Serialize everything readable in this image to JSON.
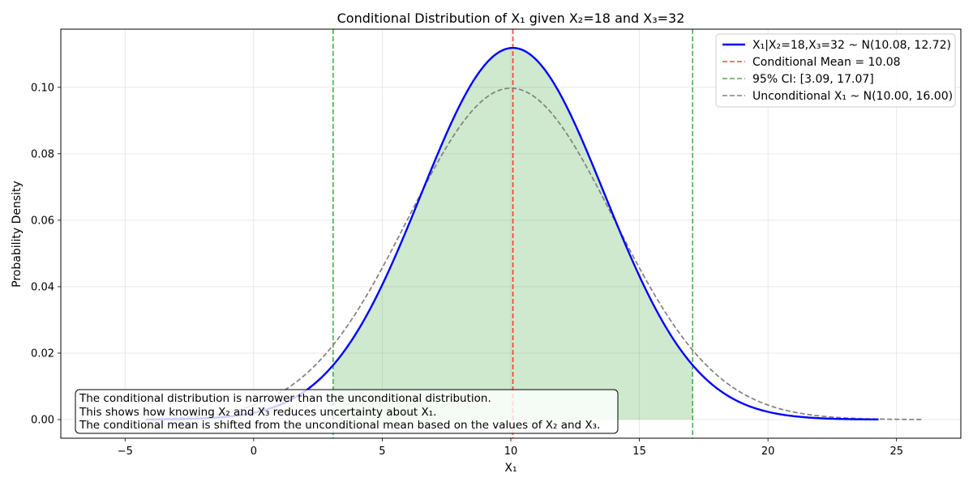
{
  "chart_data": {
    "type": "line",
    "title": "Conditional Distribution of X₁ given X₂=18 and X₃=32",
    "xlabel": "X₁",
    "ylabel": "Probability Density",
    "xlim": [
      -7.5,
      27.5
    ],
    "ylim": [
      -0.0056,
      0.1175
    ],
    "x_ticks": [
      -5,
      0,
      5,
      10,
      15,
      20,
      25
    ],
    "x_tick_labels": [
      "−5",
      "0",
      "5",
      "10",
      "15",
      "20",
      "25"
    ],
    "y_ticks": [
      0.0,
      0.02,
      0.04,
      0.06,
      0.08,
      0.1
    ],
    "y_tick_labels": [
      "0.00",
      "0.02",
      "0.04",
      "0.06",
      "0.08",
      "0.10"
    ],
    "grid": true,
    "legend_position": "top-right",
    "series": [
      {
        "name": "X₁|X₂=18,X₃=32 ~ N(10.08, 12.72)",
        "kind": "normal_pdf",
        "mean": 10.08,
        "variance": 12.72,
        "x_range": [
          -4.2,
          24.3
        ],
        "color": "#0000ff",
        "style": "solid"
      },
      {
        "name": "Conditional Mean = 10.08",
        "kind": "vline",
        "x": 10.08,
        "color": "#ff0000",
        "style": "dashed"
      },
      {
        "name": "95% CI: [3.09, 17.07]",
        "kind": "vlines",
        "x": [
          3.09,
          17.07
        ],
        "color": "#2ca02c",
        "style": "dashed"
      },
      {
        "name": "Unconditional X₁ ~ N(10.00, 16.00)",
        "kind": "normal_pdf",
        "mean": 10.0,
        "variance": 16.0,
        "x_range": [
          -4.0,
          26.0
        ],
        "color": "#808080",
        "style": "dashed"
      }
    ],
    "shaded_region": {
      "x_from": 3.09,
      "x_to": 17.07,
      "under": "conditional",
      "color": "#2ca02c",
      "opacity": 0.23
    },
    "annotation": {
      "lines": [
        "The conditional distribution is narrower than the unconditional distribution.",
        "This shows how knowing X₂ and X₃ reduces uncertainty about X₁.",
        "The conditional mean is shifted from the unconditional mean based on the values of X₂ and X₃."
      ],
      "position": "bottom-left"
    }
  }
}
